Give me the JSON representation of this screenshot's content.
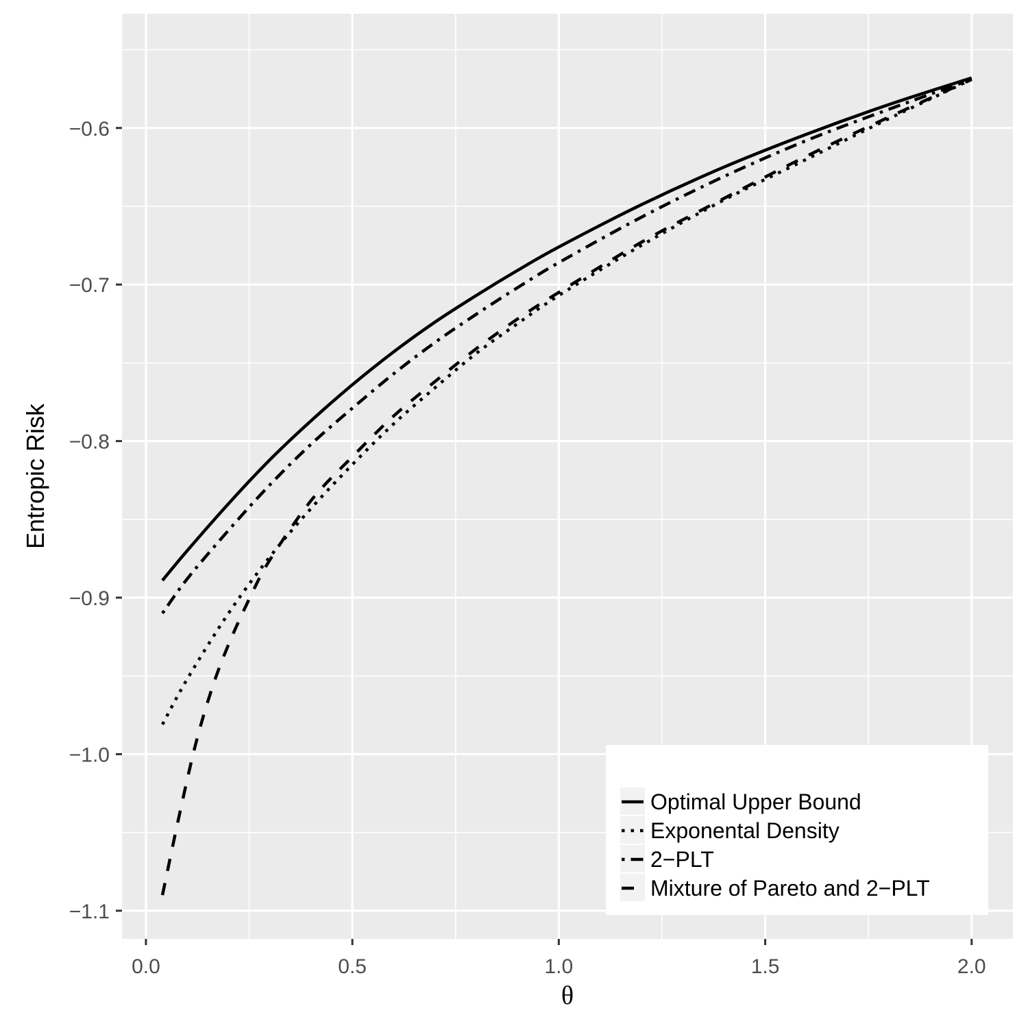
{
  "chart_data": {
    "type": "line",
    "xlabel": "θ",
    "ylabel": "Entropic Risk",
    "xlim": [
      -0.058,
      2.1
    ],
    "ylim": [
      -1.118,
      -0.527
    ],
    "xticks": [
      0.0,
      0.5,
      1.0,
      1.5,
      2.0
    ],
    "xtick_labels": [
      "0.0",
      "0.5",
      "1.0",
      "1.5",
      "2.0"
    ],
    "yticks": [
      -0.6,
      -0.7,
      -0.8,
      -0.9,
      -1.0,
      -1.1
    ],
    "ytick_labels": [
      "−0.6",
      "−0.7",
      "−0.8",
      "−0.9",
      "−1.0",
      "−1.1"
    ],
    "grid": true,
    "legend_position": "bottom-right",
    "series": [
      {
        "name": "Optimal Upper Bound",
        "dash": "solid",
        "x": [
          0.04,
          0.1,
          0.2,
          0.3,
          0.4,
          0.5,
          0.6,
          0.7,
          0.8,
          0.9,
          1.0,
          1.2,
          1.4,
          1.6,
          1.8,
          2.0
        ],
        "y": [
          -0.889,
          -0.87,
          -0.84,
          -0.812,
          -0.787,
          -0.764,
          -0.743,
          -0.724,
          -0.707,
          -0.691,
          -0.676,
          -0.649,
          -0.625,
          -0.604,
          -0.585,
          -0.568
        ]
      },
      {
        "name": "Exponental Density",
        "dash": "dotted",
        "x": [
          0.04,
          0.1,
          0.2,
          0.3,
          0.4,
          0.5,
          0.6,
          0.7,
          0.8,
          0.9,
          1.0,
          1.2,
          1.4,
          1.6,
          1.8,
          2.0
        ],
        "y": [
          -0.981,
          -0.952,
          -0.91,
          -0.874,
          -0.843,
          -0.815,
          -0.789,
          -0.766,
          -0.744,
          -0.725,
          -0.707,
          -0.675,
          -0.646,
          -0.62,
          -0.594,
          -0.569
        ]
      },
      {
        "name": "2−PLT",
        "dash": "dotdash",
        "x": [
          0.04,
          0.1,
          0.2,
          0.3,
          0.4,
          0.5,
          0.6,
          0.7,
          0.8,
          0.9,
          1.0,
          1.2,
          1.4,
          1.6,
          1.8,
          2.0
        ],
        "y": [
          -0.91,
          -0.888,
          -0.857,
          -0.828,
          -0.802,
          -0.779,
          -0.757,
          -0.737,
          -0.719,
          -0.702,
          -0.686,
          -0.657,
          -0.631,
          -0.608,
          -0.588,
          -0.569
        ]
      },
      {
        "name": "Mixture of Pareto and 2−PLT",
        "dash": "dashed",
        "x": [
          0.04,
          0.08,
          0.12,
          0.16,
          0.2,
          0.25,
          0.3,
          0.4,
          0.5,
          0.6,
          0.7,
          0.8,
          0.9,
          1.0,
          1.2,
          1.4,
          1.6,
          1.8,
          2.0
        ],
        "y": [
          -1.09,
          -1.04,
          -0.994,
          -0.958,
          -0.93,
          -0.901,
          -0.876,
          -0.838,
          -0.81,
          -0.784,
          -0.762,
          -0.741,
          -0.722,
          -0.705,
          -0.673,
          -0.645,
          -0.618,
          -0.593,
          -0.569
        ]
      }
    ]
  }
}
